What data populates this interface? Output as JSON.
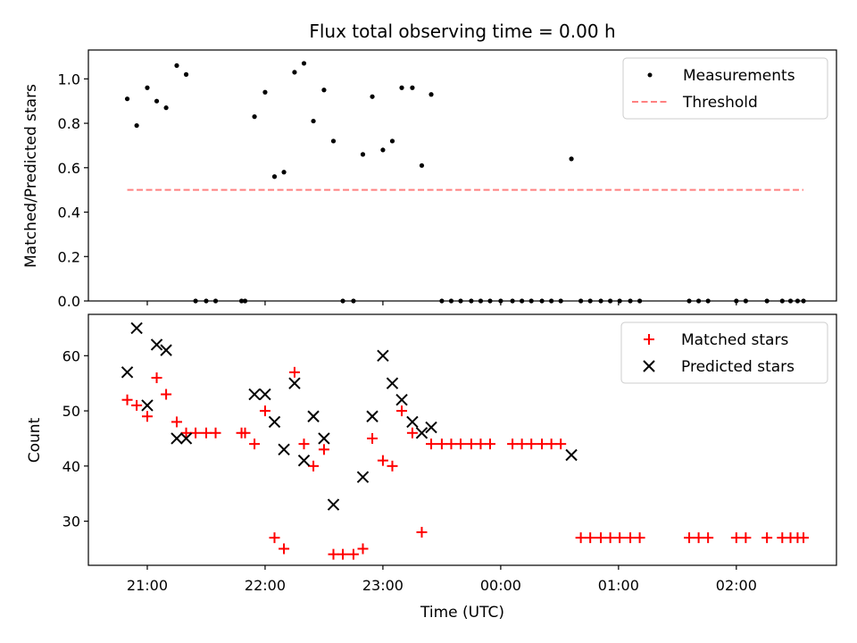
{
  "chart_data": [
    {
      "type": "scatter",
      "title": "Flux total observing time = 0.00 h",
      "xlabel": "",
      "ylabel": "Matched/Predicted stars",
      "xlim": [
        20.5,
        26.85
      ],
      "ylim": [
        0,
        1.13
      ],
      "yticks": [
        0.0,
        0.2,
        0.4,
        0.6,
        0.8,
        1.0
      ],
      "ytick_labels": [
        "0.0",
        "0.2",
        "0.4",
        "0.6",
        "0.8",
        "1.0"
      ],
      "legend_position": "top-right",
      "series": [
        {
          "name": "Measurements",
          "marker": "dot",
          "color": "#000000",
          "x": [
            20.83,
            20.91,
            21.0,
            21.08,
            21.16,
            21.25,
            21.33,
            21.41,
            21.5,
            21.58,
            21.8,
            21.83,
            21.91,
            22.0,
            22.08,
            22.16,
            22.25,
            22.33,
            22.41,
            22.5,
            22.58,
            22.66,
            22.75,
            22.83,
            22.91,
            23.0,
            23.08,
            23.16,
            23.25,
            23.33,
            23.41,
            23.5,
            23.58,
            23.66,
            23.75,
            23.83,
            23.91,
            24.0,
            24.1,
            24.18,
            24.26,
            24.35,
            24.43,
            24.51,
            24.6,
            24.68,
            24.76,
            24.85,
            24.93,
            25.01,
            25.1,
            25.18,
            25.6,
            25.68,
            25.76,
            26.0,
            26.08,
            26.26,
            26.39,
            26.46,
            26.52,
            26.57
          ],
          "y": [
            0.91,
            0.79,
            0.96,
            0.9,
            0.87,
            1.06,
            1.02,
            0.0,
            0.0,
            0.0,
            0.0,
            0.0,
            0.83,
            0.94,
            0.56,
            0.58,
            1.03,
            1.07,
            0.81,
            0.95,
            0.72,
            0.0,
            0.0,
            0.66,
            0.92,
            0.68,
            0.72,
            0.96,
            0.96,
            0.61,
            0.93,
            0.0,
            0.0,
            0.0,
            0.0,
            0.0,
            0.0,
            0.0,
            0.0,
            0.0,
            0.0,
            0.0,
            0.0,
            0.0,
            0.64,
            0.0,
            0.0,
            0.0,
            0.0,
            0.0,
            0.0,
            0.0,
            0.0,
            0.0,
            0.0,
            0.0,
            0.0,
            0.0,
            0.0,
            0.0,
            0.0,
            0.0
          ]
        },
        {
          "name": "Threshold",
          "marker": "dashed-line",
          "color": "#ff8080",
          "x": [
            20.83,
            26.57
          ],
          "y": [
            0.5,
            0.5
          ]
        }
      ]
    },
    {
      "type": "scatter",
      "title": "",
      "xlabel": "Time (UTC)",
      "ylabel": "Count",
      "xlim": [
        20.5,
        26.85
      ],
      "ylim": [
        22.0,
        67.5
      ],
      "xticks": [
        21,
        22,
        23,
        24,
        25,
        26
      ],
      "xtick_labels": [
        "21:00",
        "22:00",
        "23:00",
        "00:00",
        "01:00",
        "02:00"
      ],
      "yticks": [
        30,
        40,
        50,
        60
      ],
      "ytick_labels": [
        "30",
        "40",
        "50",
        "60"
      ],
      "legend_position": "top-right",
      "series": [
        {
          "name": "Matched stars",
          "marker": "plus",
          "color": "#ff0000",
          "x": [
            20.83,
            20.91,
            21.0,
            21.08,
            21.16,
            21.25,
            21.33,
            21.41,
            21.5,
            21.58,
            21.8,
            21.83,
            21.91,
            22.0,
            22.08,
            22.16,
            22.25,
            22.33,
            22.41,
            22.5,
            22.58,
            22.66,
            22.75,
            22.83,
            22.91,
            23.0,
            23.08,
            23.16,
            23.25,
            23.33,
            23.41,
            23.5,
            23.58,
            23.66,
            23.75,
            23.83,
            23.91,
            24.1,
            24.18,
            24.26,
            24.35,
            24.43,
            24.51,
            24.68,
            24.76,
            24.85,
            24.93,
            25.01,
            25.1,
            25.18,
            25.6,
            25.68,
            25.76,
            26.0,
            26.08,
            26.26,
            26.39,
            26.46,
            26.52,
            26.57
          ],
          "y": [
            52,
            51,
            49,
            56,
            53,
            48,
            46,
            46,
            46,
            46,
            46,
            46,
            44,
            50,
            27,
            25,
            57,
            44,
            40,
            43,
            24,
            24,
            24,
            25,
            45,
            41,
            40,
            50,
            46,
            28,
            44,
            44,
            44,
            44,
            44,
            44,
            44,
            44,
            44,
            44,
            44,
            44,
            44,
            27,
            27,
            27,
            27,
            27,
            27,
            27,
            27,
            27,
            27,
            27,
            27,
            27,
            27,
            27,
            27,
            27
          ]
        },
        {
          "name": "Predicted stars",
          "marker": "x",
          "color": "#000000",
          "x": [
            20.83,
            20.91,
            21.0,
            21.08,
            21.16,
            21.25,
            21.33,
            21.91,
            22.0,
            22.08,
            22.16,
            22.25,
            22.33,
            22.41,
            22.5,
            22.58,
            22.83,
            22.91,
            23.0,
            23.08,
            23.16,
            23.25,
            23.33,
            23.41,
            24.6
          ],
          "y": [
            57,
            65,
            51,
            62,
            61,
            45,
            45,
            53,
            53,
            48,
            43,
            55,
            41,
            49,
            45,
            33,
            38,
            49,
            60,
            55,
            52,
            48,
            46,
            47,
            42
          ]
        }
      ]
    }
  ]
}
